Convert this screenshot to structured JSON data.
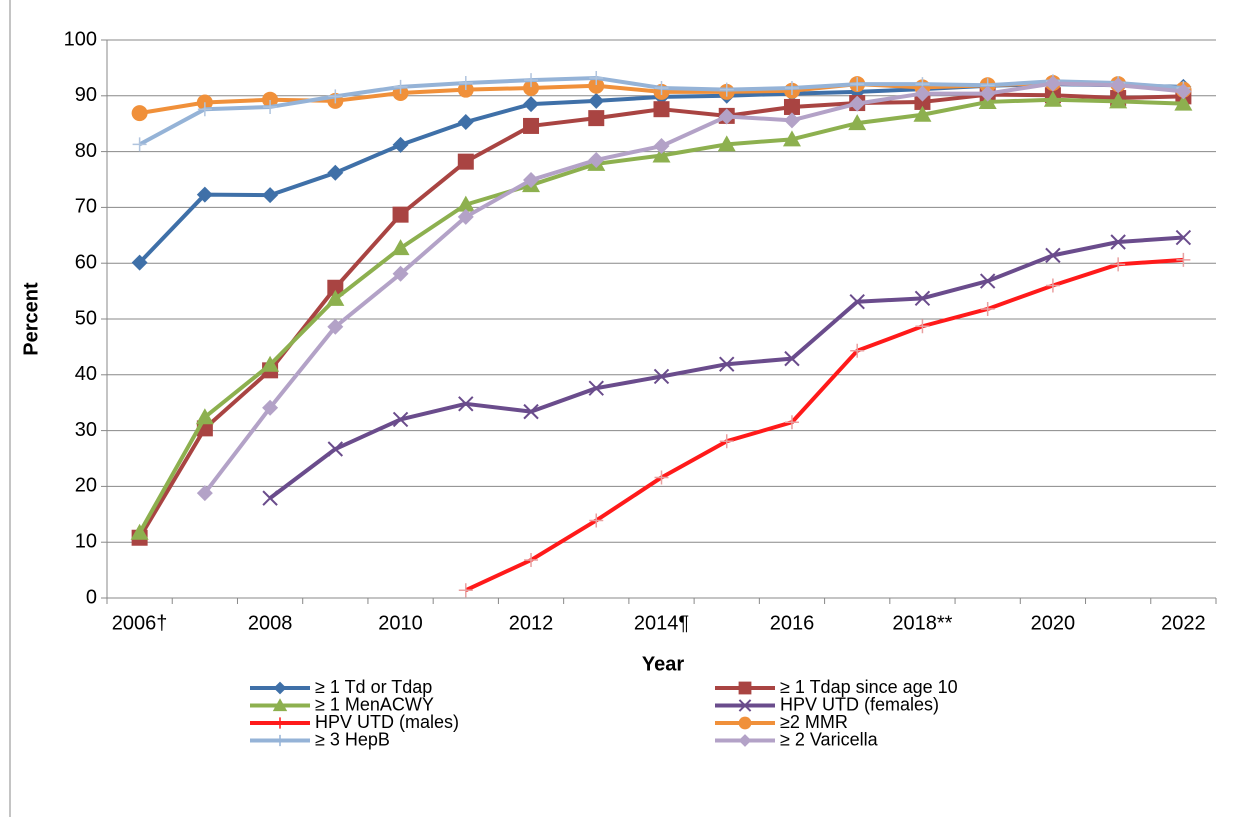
{
  "chart_data": {
    "type": "line",
    "x_label": "Year",
    "y_label": "Percent",
    "categories": [
      "2006†",
      null,
      "2008",
      null,
      "2010",
      null,
      "2012",
      null,
      "2014¶",
      null,
      "2016",
      null,
      "2018**",
      null,
      "2020",
      null,
      "2022"
    ],
    "ylim": [
      0,
      100
    ],
    "yticks": [
      0,
      10,
      20,
      30,
      40,
      50,
      60,
      70,
      80,
      90,
      100
    ],
    "grid": true,
    "series": [
      {
        "name": "≥ 1 Td or Tdap",
        "color": "#3f70a8",
        "marker": "diamond",
        "values": [
          60.1,
          72.3,
          72.2,
          76.2,
          81.2,
          85.3,
          88.5,
          89.1,
          89.8,
          90.0,
          90.4,
          90.7,
          91.2,
          91.8,
          92.1,
          91.9,
          91.6
        ]
      },
      {
        "name": "≥ 1 Tdap since age 10",
        "color": "#a94442",
        "marker": "square",
        "values": [
          10.8,
          30.4,
          40.8,
          55.6,
          68.7,
          78.2,
          84.6,
          86.0,
          87.6,
          86.4,
          88.0,
          88.7,
          88.9,
          90.2,
          90.1,
          89.6,
          89.9
        ]
      },
      {
        "name": "≥ 1 MenACWY",
        "color": "#8db04f",
        "marker": "triangle",
        "values": [
          11.7,
          32.4,
          41.8,
          53.6,
          62.7,
          70.5,
          74.0,
          77.8,
          79.3,
          81.3,
          82.2,
          85.1,
          86.6,
          88.9,
          89.3,
          89.0,
          88.6
        ]
      },
      {
        "name": "HPV UTD (females)",
        "color": "#6a4c8c",
        "marker": "x",
        "values": [
          null,
          null,
          17.9,
          26.7,
          32.0,
          34.8,
          33.4,
          37.6,
          39.7,
          41.9,
          42.9,
          53.1,
          53.7,
          56.8,
          61.4,
          63.8,
          64.6
        ]
      },
      {
        "name": "HPV UTD (males)",
        "color": "#ff1a1a",
        "marker": "plus",
        "values": [
          null,
          null,
          null,
          null,
          null,
          1.4,
          6.8,
          13.9,
          21.6,
          28.1,
          31.5,
          44.3,
          48.7,
          51.8,
          56.0,
          59.8,
          60.6
        ]
      },
      {
        "name": "≥2 MMR",
        "color": "#f0903a",
        "marker": "circle",
        "values": [
          86.9,
          88.8,
          89.3,
          89.1,
          90.5,
          91.1,
          91.4,
          91.8,
          90.7,
          90.7,
          90.9,
          92.1,
          91.5,
          91.9,
          92.3,
          92.1,
          91.1
        ]
      },
      {
        "name": "≥ 3 HepB",
        "color": "#95b3d7",
        "marker": "plus",
        "values": [
          81.3,
          87.6,
          88.0,
          89.9,
          91.6,
          92.3,
          92.8,
          93.2,
          91.4,
          91.1,
          91.4,
          92.1,
          92.1,
          91.9,
          92.6,
          92.3,
          91.4
        ]
      },
      {
        "name": "≥ 2 Varicella",
        "color": "#b3a2c7",
        "marker": "diamond",
        "values": [
          null,
          18.8,
          34.1,
          48.6,
          58.1,
          68.3,
          74.9,
          78.5,
          81.0,
          86.3,
          85.6,
          88.6,
          90.4,
          90.4,
          92.2,
          91.9,
          90.8
        ]
      }
    ]
  }
}
